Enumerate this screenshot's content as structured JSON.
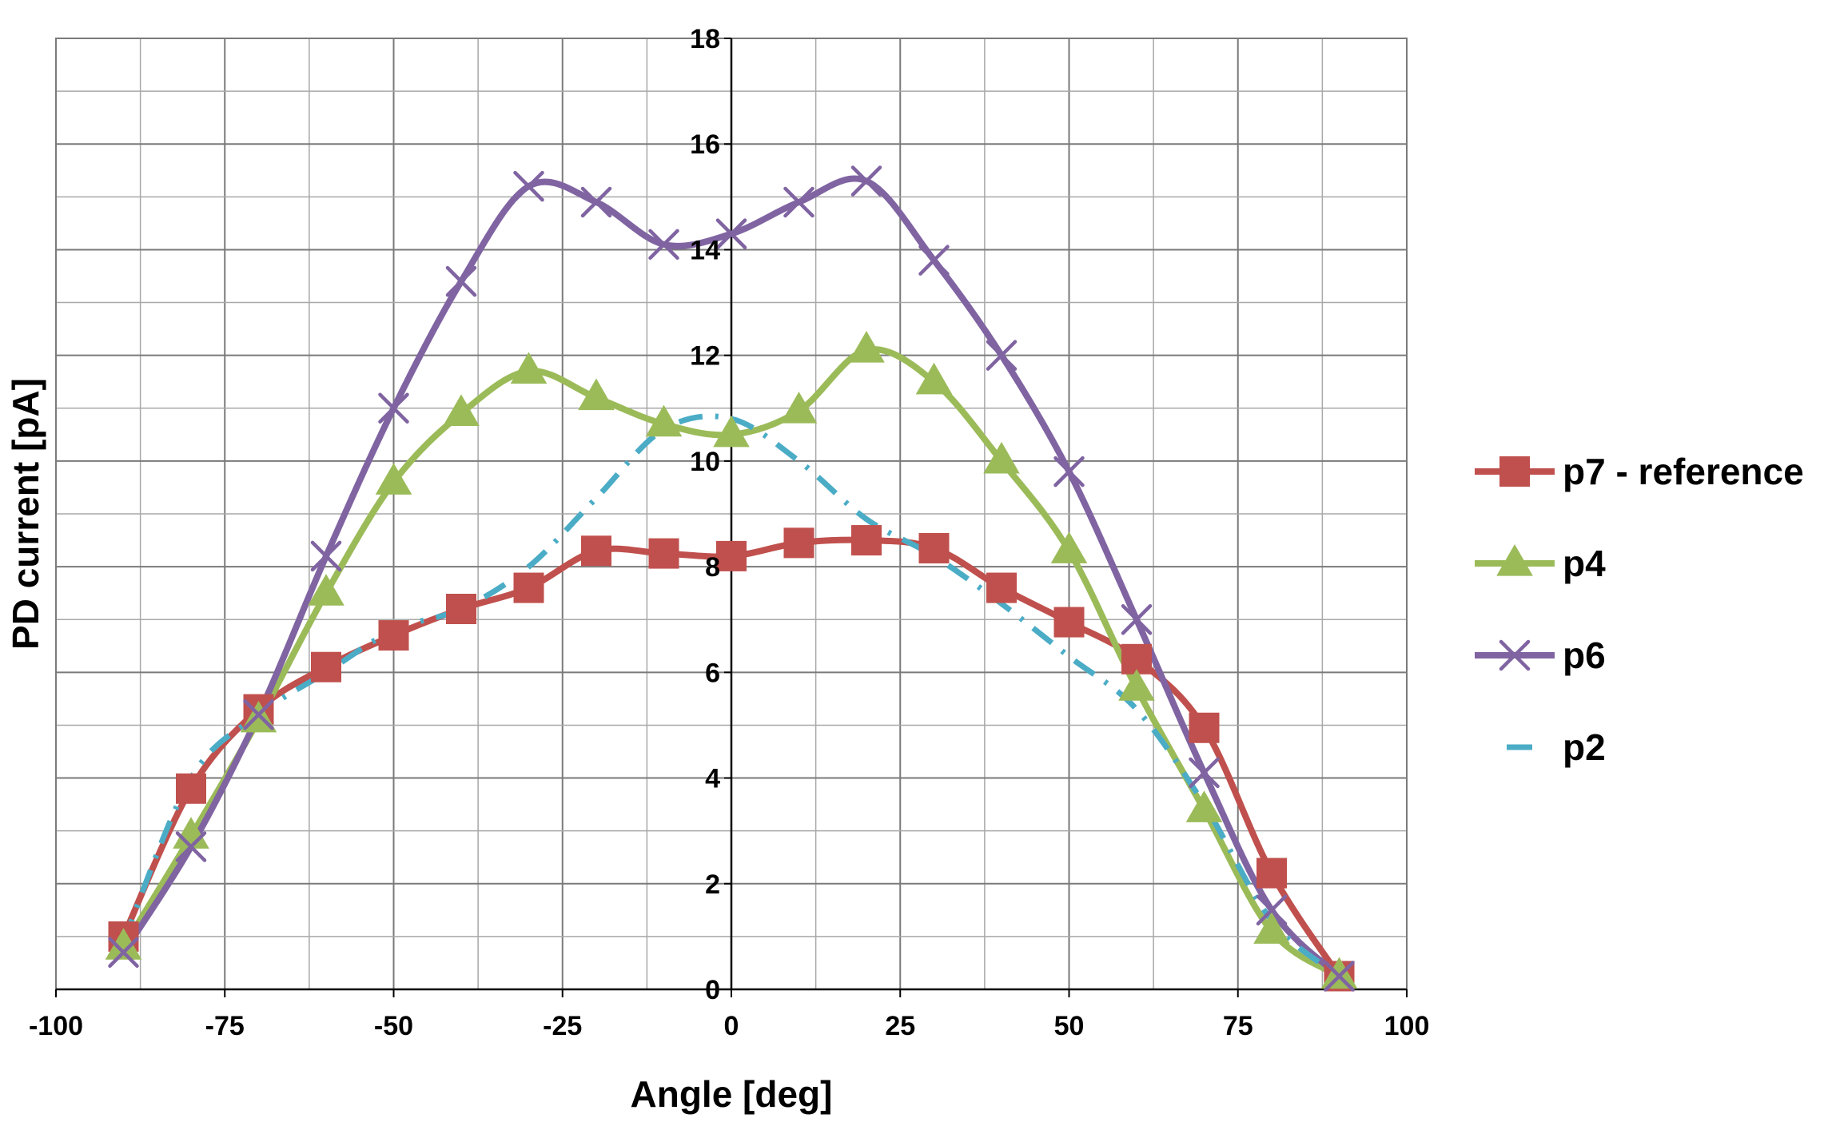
{
  "chart_data": {
    "type": "line",
    "title": "",
    "xlabel": "Angle [deg]",
    "ylabel": "PD current [pA]",
    "xlim": [
      -100,
      100
    ],
    "ylim": [
      0,
      18
    ],
    "x_ticks": [
      -100,
      -75,
      -50,
      -25,
      0,
      25,
      50,
      75,
      100
    ],
    "x_tick_labels": [
      "-100",
      "-75",
      "-50",
      "-25",
      "0",
      "25",
      "50",
      "75",
      "100"
    ],
    "y_ticks": [
      0,
      2,
      4,
      6,
      8,
      10,
      12,
      14,
      16,
      18
    ],
    "y_tick_labels": [
      "0",
      "2",
      "4",
      "6",
      "8",
      "10",
      "12",
      "14",
      "16",
      "18"
    ],
    "grid": true,
    "legend_position": "right",
    "x": [
      -90,
      -80,
      -70,
      -60,
      -50,
      -40,
      -30,
      -20,
      -10,
      0,
      10,
      20,
      30,
      40,
      50,
      60,
      70,
      80,
      90
    ],
    "series": [
      {
        "name": "p7 - reference",
        "color": "#c0504d",
        "marker": "square",
        "line_style": "solid",
        "values": [
          1.0,
          3.8,
          5.3,
          6.1,
          6.7,
          7.2,
          7.6,
          8.3,
          8.25,
          8.2,
          8.45,
          8.5,
          8.35,
          7.6,
          6.95,
          6.25,
          4.95,
          2.2,
          0.25
        ]
      },
      {
        "name": "p4",
        "color": "#9bbb59",
        "marker": "triangle",
        "line_style": "solid",
        "values": [
          0.8,
          2.9,
          5.1,
          7.5,
          9.6,
          10.9,
          11.7,
          11.2,
          10.7,
          10.5,
          10.95,
          12.1,
          11.5,
          10.0,
          8.3,
          5.7,
          3.4,
          1.1,
          0.25
        ]
      },
      {
        "name": "p6",
        "color": "#8064a2",
        "marker": "x",
        "line_style": "solid",
        "values": [
          0.7,
          2.7,
          5.2,
          8.2,
          11.0,
          13.4,
          15.2,
          14.9,
          14.1,
          14.3,
          14.9,
          15.3,
          13.8,
          12.0,
          9.8,
          7.0,
          4.1,
          1.5,
          0.25
        ]
      },
      {
        "name": "p2",
        "color": "#4bacc6",
        "marker": "none",
        "line_style": "dash-dot",
        "values": [
          0.9,
          4.0,
          5.2,
          6.0,
          6.8,
          7.2,
          8.0,
          9.3,
          10.6,
          10.8,
          10.0,
          8.9,
          8.2,
          7.3,
          6.3,
          5.3,
          3.5,
          1.3,
          0.25
        ]
      }
    ]
  }
}
